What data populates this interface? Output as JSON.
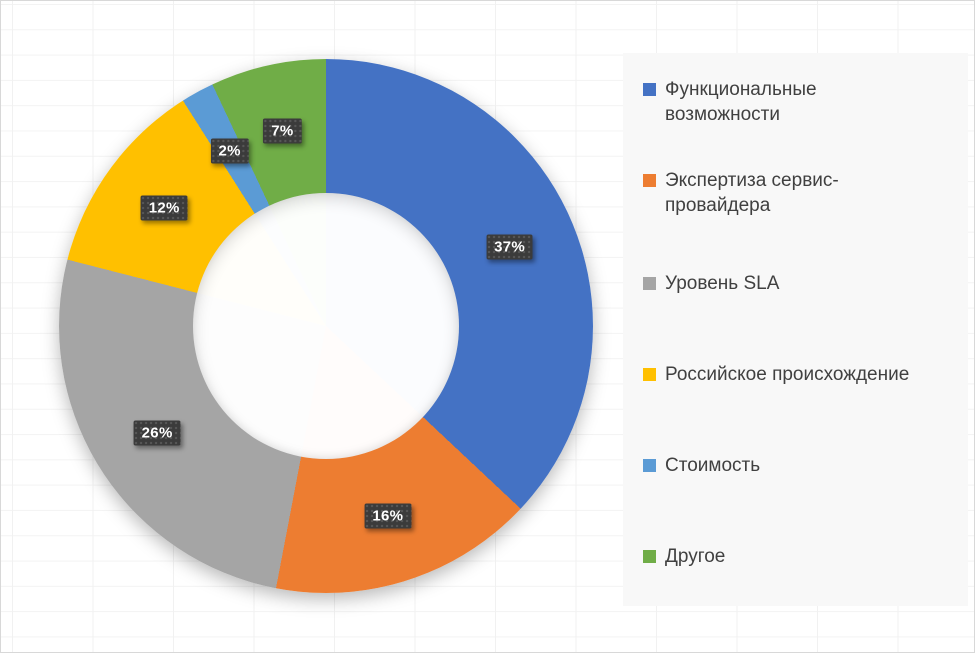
{
  "chart_data": {
    "type": "pie",
    "subtype": "donut",
    "title": "",
    "categories": [
      "Функциональные возможности",
      "Экспертиза сервис-провайдера",
      "Уровень SLA",
      "Российское происхождение",
      "Стоимость",
      "Другое"
    ],
    "values": [
      37,
      16,
      26,
      12,
      2,
      7
    ],
    "data_labels": [
      "37%",
      "16%",
      "26%",
      "12%",
      "2%",
      "7%"
    ],
    "colors": [
      "#4472C4",
      "#ED7D31",
      "#A5A5A5",
      "#FFC000",
      "#5B9BD5",
      "#70AD47"
    ],
    "legend_labels": [
      "Функциональные\nвозможности",
      "Экспертиза сервис-\nпровайдера",
      "Уровень SLA",
      "Российское происхождение",
      "Стоимость",
      "Другое"
    ],
    "legend_position": "right",
    "start_angle_deg": 0,
    "direction": "clockwise",
    "hole_ratio": 0.5,
    "label_style": {
      "background": "#3B3B3B",
      "text_color": "#FFFFFF"
    },
    "legend_style": {
      "background": "#F8F8F8",
      "text_color": "#404040"
    }
  }
}
